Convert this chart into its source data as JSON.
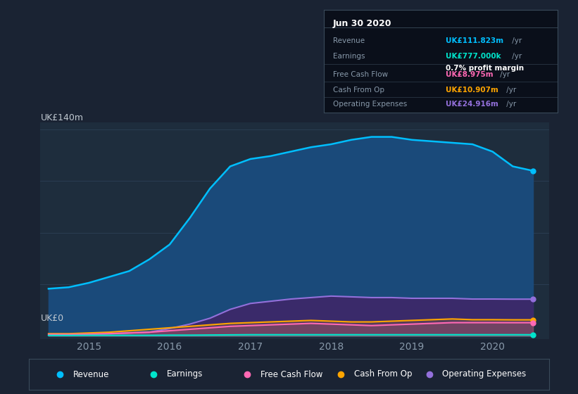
{
  "bg_color": "#1a2333",
  "plot_bg_color": "#1e2d3d",
  "grid_color": "#2a3d52",
  "title_text": "Jun 30 2020",
  "ylabel_text": "UK£140m",
  "y0_text": "UK£0",
  "years": [
    2014.5,
    2014.75,
    2015.0,
    2015.25,
    2015.5,
    2015.75,
    2016.0,
    2016.25,
    2016.5,
    2016.75,
    2017.0,
    2017.25,
    2017.5,
    2017.75,
    2018.0,
    2018.25,
    2018.5,
    2018.75,
    2019.0,
    2019.25,
    2019.5,
    2019.75,
    2020.0,
    2020.25,
    2020.5
  ],
  "revenue": [
    32,
    33,
    36,
    40,
    44,
    52,
    62,
    80,
    100,
    115,
    120,
    122,
    125,
    128,
    130,
    133,
    135,
    135,
    133,
    132,
    131,
    130,
    125,
    115,
    112
  ],
  "earnings": [
    0.3,
    0.3,
    0.4,
    0.4,
    0.4,
    0.4,
    0.5,
    0.5,
    0.6,
    0.7,
    0.8,
    0.8,
    0.8,
    0.8,
    0.8,
    0.8,
    0.8,
    0.8,
    0.8,
    0.8,
    0.8,
    0.8,
    0.8,
    0.8,
    0.777
  ],
  "free_cash_flow": [
    1.0,
    1.0,
    1.2,
    1.5,
    2.0,
    2.5,
    3.5,
    4.5,
    5.5,
    6.5,
    7.0,
    7.5,
    8.0,
    8.5,
    8.0,
    7.5,
    7.0,
    7.5,
    8.0,
    8.5,
    9.0,
    9.0,
    9.0,
    8.975,
    8.975
  ],
  "cash_from_op": [
    1.5,
    1.5,
    2.0,
    2.5,
    3.5,
    4.5,
    5.5,
    6.5,
    7.5,
    8.5,
    9.0,
    9.5,
    10.0,
    10.5,
    10.0,
    9.5,
    9.5,
    10.0,
    10.5,
    11.0,
    11.5,
    11.0,
    11.0,
    10.907,
    10.907
  ],
  "op_expenses": [
    0.5,
    0.5,
    1.0,
    1.5,
    2.0,
    2.5,
    5.0,
    8.0,
    12.0,
    18.0,
    22.0,
    23.5,
    25.0,
    26.0,
    27.0,
    26.5,
    26.0,
    26.0,
    25.5,
    25.5,
    25.5,
    25.0,
    25.0,
    24.916,
    24.916
  ],
  "revenue_color": "#00bfff",
  "earnings_color": "#00e5cc",
  "free_cash_flow_color": "#ff69b4",
  "cash_from_op_color": "#ffa500",
  "op_expenses_color": "#9370db",
  "revenue_fill": "#1a4a7a",
  "op_expenses_fill": "#3a2a6a",
  "info_box": {
    "bg": "#0a0f1a",
    "border": "#3a4a5a",
    "title": "Jun 30 2020",
    "rows": [
      {
        "label": "Revenue",
        "value": "UK£111.823m",
        "unit": "/yr",
        "value_color": "#00bfff"
      },
      {
        "label": "Earnings",
        "value": "UK£777.000k",
        "unit": "/yr",
        "value_color": "#00e5cc",
        "sub": "0.7% profit margin"
      },
      {
        "label": "Free Cash Flow",
        "value": "UK£8.975m",
        "unit": "/yr",
        "value_color": "#ff69b4"
      },
      {
        "label": "Cash From Op",
        "value": "UK£10.907m",
        "unit": "/yr",
        "value_color": "#ffa500"
      },
      {
        "label": "Operating Expenses",
        "value": "UK£24.916m",
        "unit": "/yr",
        "value_color": "#9370db"
      }
    ]
  },
  "legend_items": [
    {
      "label": "Revenue",
      "color": "#00bfff"
    },
    {
      "label": "Earnings",
      "color": "#00e5cc"
    },
    {
      "label": "Free Cash Flow",
      "color": "#ff69b4"
    },
    {
      "label": "Cash From Op",
      "color": "#ffa500"
    },
    {
      "label": "Operating Expenses",
      "color": "#9370db"
    }
  ]
}
